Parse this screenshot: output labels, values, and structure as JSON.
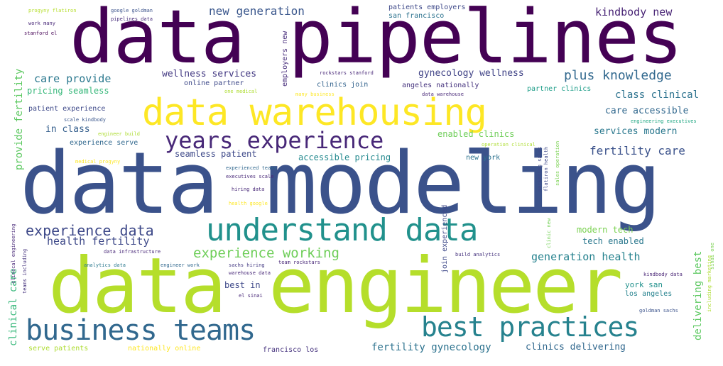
{
  "word_cloud": {
    "words": [
      {
        "text": "data pipelines",
        "color": "#440154"
      },
      {
        "text": "data modeling",
        "color": "#3b528b"
      },
      {
        "text": "data engineer",
        "color": "#b5de2b"
      },
      {
        "text": "data warehousing",
        "color": "#fde725"
      },
      {
        "text": "understand data",
        "color": "#21918c"
      },
      {
        "text": "business teams",
        "color": "#31688e"
      },
      {
        "text": "best practices",
        "color": "#26828e"
      },
      {
        "text": "years experience",
        "color": "#482878"
      },
      {
        "text": "experience data",
        "color": "#3e4989"
      },
      {
        "text": "experience working",
        "color": "#6ece58"
      },
      {
        "text": "new generation",
        "color": "#39568c"
      },
      {
        "text": "kindbody new",
        "color": "#482475"
      },
      {
        "text": "plus knowledge",
        "color": "#31688e"
      },
      {
        "text": "wellness services",
        "color": "#443a83"
      },
      {
        "text": "care provide",
        "color": "#2a788e"
      },
      {
        "text": "gynecology wellness",
        "color": "#414487"
      },
      {
        "text": "pricing seamless",
        "color": "#35b779"
      },
      {
        "text": "class clinical",
        "color": "#2c728e"
      },
      {
        "text": "patient experience",
        "color": "#3e4989"
      },
      {
        "text": "care accessible",
        "color": "#31688e"
      },
      {
        "text": "in class",
        "color": "#355f8d"
      },
      {
        "text": "enabled clinics",
        "color": "#6ece58"
      },
      {
        "text": "services modern",
        "color": "#2a788e"
      },
      {
        "text": "experience serve",
        "color": "#31688e"
      },
      {
        "text": "seamless patient",
        "color": "#3e4989"
      },
      {
        "text": "accessible pricing",
        "color": "#23898e"
      },
      {
        "text": "fertility care",
        "color": "#3b528b"
      },
      {
        "text": "health fertility",
        "color": "#3e4989"
      },
      {
        "text": "modern tech",
        "color": "#7ad151"
      },
      {
        "text": "tech enabled",
        "color": "#2a788e"
      },
      {
        "text": "generation health",
        "color": "#26828e"
      },
      {
        "text": "best in",
        "color": "#3e4989"
      },
      {
        "text": "york san",
        "color": "#21918c"
      },
      {
        "text": "los angeles",
        "color": "#26828e"
      },
      {
        "text": "fertility gynecology",
        "color": "#2c728e"
      },
      {
        "text": "clinics delivering",
        "color": "#31688e"
      },
      {
        "text": "serve patients",
        "color": "#addc30"
      },
      {
        "text": "nationally online",
        "color": "#fde725"
      },
      {
        "text": "francisco los",
        "color": "#46337e"
      },
      {
        "text": "provide fertility",
        "color": "#5ec962"
      },
      {
        "text": "clinical care",
        "color": "#35b779"
      },
      {
        "text": "delivering best",
        "color": "#5ec962"
      },
      {
        "text": "employers new",
        "color": "#472d7b"
      },
      {
        "text": "join experienced",
        "color": "#3e4989"
      },
      {
        "text": "patients employers",
        "color": "#3e4989"
      },
      {
        "text": "san francisco",
        "color": "#2c728e"
      },
      {
        "text": "clinics join",
        "color": "#33638d"
      },
      {
        "text": "angeles nationally",
        "color": "#46337e"
      },
      {
        "text": "online partner",
        "color": "#3e4989"
      },
      {
        "text": "partner clinics",
        "color": "#1f9e89"
      },
      {
        "text": "new york",
        "color": "#2c728e"
      },
      {
        "text": "progyny flatiron",
        "color": "#b5de2b"
      },
      {
        "text": "google goldman",
        "color": "#3b528b"
      },
      {
        "text": "pipelines data",
        "color": "#472d7b"
      },
      {
        "text": "work many",
        "color": "#482878"
      },
      {
        "text": "stanford el",
        "color": "#440154"
      },
      {
        "text": "rockstars stanford",
        "color": "#482878"
      },
      {
        "text": "one medical",
        "color": "#addc30"
      },
      {
        "text": "many business",
        "color": "#fde725"
      },
      {
        "text": "data warehouse",
        "color": "#482878"
      },
      {
        "text": "scale kindbody",
        "color": "#39568c"
      },
      {
        "text": "engineer build",
        "color": "#addc30"
      },
      {
        "text": "engineering executives",
        "color": "#22a884"
      },
      {
        "text": "operation clinical",
        "color": "#addc30"
      },
      {
        "text": "medical progyny",
        "color": "#fde725"
      },
      {
        "text": "experienced teams",
        "color": "#31688e"
      },
      {
        "text": "executives scale",
        "color": "#482878"
      },
      {
        "text": "hiring data",
        "color": "#482878"
      },
      {
        "text": "health google",
        "color": "#fde725"
      },
      {
        "text": "build analytics",
        "color": "#46337e"
      },
      {
        "text": "data infrastructure",
        "color": "#482878"
      },
      {
        "text": "analytics data",
        "color": "#2a788e"
      },
      {
        "text": "engineer work",
        "color": "#31688e"
      },
      {
        "text": "sachs hiring",
        "color": "#443a83"
      },
      {
        "text": "team rockstars",
        "color": "#482878"
      },
      {
        "text": "warehouse data",
        "color": "#482878"
      },
      {
        "text": "el sinai",
        "color": "#482878"
      },
      {
        "text": "kindbody data",
        "color": "#482475"
      },
      {
        "text": "goldman sachs",
        "color": "#3b528b"
      },
      {
        "text": "clinical engineering",
        "color": "#482878"
      },
      {
        "text": "teams including",
        "color": "#46337e"
      },
      {
        "text": "marketing sales",
        "color": "#3e4989"
      },
      {
        "text": "flatiron health",
        "color": "#3e4989"
      },
      {
        "text": "sales operation",
        "color": "#7ad151"
      },
      {
        "text": "clinic new",
        "color": "#73d056"
      },
      {
        "text": "including marketing",
        "color": "#addc30"
      },
      {
        "text": "sinai one",
        "color": "#7ad151"
      }
    ]
  }
}
